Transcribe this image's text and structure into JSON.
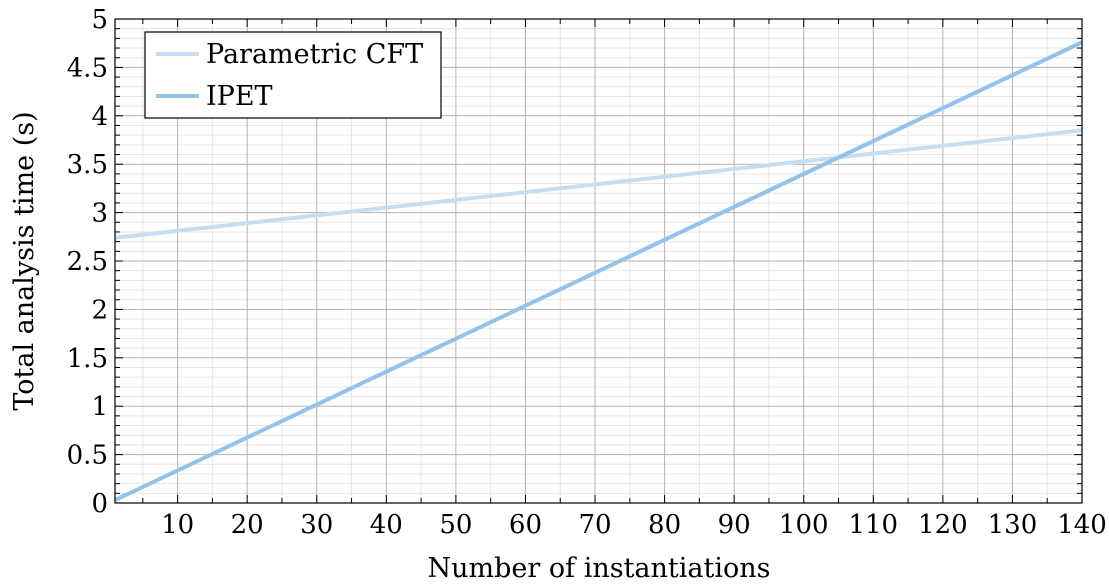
{
  "chart_data": {
    "type": "line",
    "xlabel": "Number of instantiations",
    "ylabel": "Total analysis time (s)",
    "xlim": [
      1,
      140
    ],
    "ylim": [
      0,
      5
    ],
    "x_ticks": [
      10,
      20,
      30,
      40,
      50,
      60,
      70,
      80,
      90,
      100,
      110,
      120,
      130,
      140
    ],
    "y_ticks": [
      0,
      0.5,
      1,
      1.5,
      2,
      2.5,
      3,
      3.5,
      4,
      4.5,
      5
    ],
    "x_tick_labels": [
      "10",
      "20",
      "30",
      "40",
      "50",
      "60",
      "70",
      "80",
      "90",
      "100",
      "110",
      "120",
      "130",
      "140"
    ],
    "y_tick_labels": [
      "0",
      "0.5",
      "1",
      "1.5",
      "2",
      "2.5",
      "3",
      "3.5",
      "4",
      "4.5",
      "5"
    ],
    "grid": true,
    "minor_grid": true,
    "legend_position": "top-left",
    "series": [
      {
        "name": "Parametric CFT",
        "color": "#c6def2",
        "x": [
          1,
          140
        ],
        "y": [
          2.74,
          3.85
        ]
      },
      {
        "name": "IPET",
        "color": "#94c2ea",
        "x": [
          1,
          140
        ],
        "y": [
          0.03,
          4.76
        ]
      }
    ]
  }
}
